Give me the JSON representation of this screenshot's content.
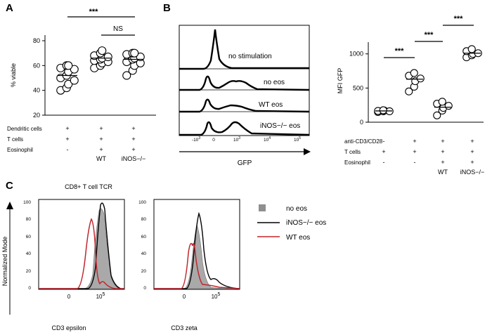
{
  "panel_labels": {
    "a": "A",
    "b": "B",
    "c": "C"
  },
  "panel_a": {
    "ylabel": "% viable",
    "significance": [
      "***",
      "NS"
    ],
    "row_labels": [
      "Dendritic cells",
      "T cells",
      "Eosinophil"
    ],
    "row_marks": [
      [
        "+",
        "+",
        "+"
      ],
      [
        "+",
        "+",
        "+"
      ],
      [
        "-",
        "+",
        "+"
      ]
    ],
    "group_names": [
      "",
      "WT",
      "iNOS−/−"
    ]
  },
  "panel_b_hist": {
    "xlabel": "GFP",
    "track_labels": [
      "no stimulation",
      "no eos",
      "WT eos",
      "iNOS−/− eos"
    ]
  },
  "panel_b_scatter": {
    "ylabel": "MFI GFP",
    "significance": [
      "***",
      "***",
      "***"
    ],
    "row_labels": [
      "anti-CD3/CD28",
      "T cells",
      "Eosinophil"
    ],
    "row_marks": [
      [
        "-",
        "+",
        "+",
        "+"
      ],
      [
        "+",
        "+",
        "+",
        "+"
      ],
      [
        "-",
        "-",
        "+",
        "+"
      ]
    ],
    "group_names": [
      "",
      "",
      "WT",
      "iNOS−/−"
    ]
  },
  "panel_c": {
    "title": "CD8+ T cell TCR",
    "ylabel": "Normalized Mode",
    "plot_xlabels": [
      "CD3 epsilon",
      "CD3 zeta"
    ],
    "y_ticks": [
      "100",
      "80",
      "60",
      "40",
      "20",
      "0"
    ],
    "x_ticks": [
      "0",
      "5"
    ],
    "legend": [
      {
        "label": "no eos",
        "color": "#8f8f8f"
      },
      {
        "label": "iNOS−/− eos",
        "color": "#000000"
      },
      {
        "label": "WT eos",
        "color": "#c0262d"
      }
    ]
  },
  "chart_data": [
    {
      "type": "scatter",
      "ylabel": "% viable",
      "ylim": [
        20,
        80
      ],
      "yticks": [
        20,
        40,
        60,
        80
      ],
      "categories": [
        "DC + T cells",
        "DC + T cells + WT eosinophil",
        "DC + T cells + iNOS−/− eosinophil"
      ],
      "series": [
        {
          "values": [
            [
              40,
              42,
              45,
              48,
              50,
              52,
              55,
              57,
              58,
              60,
              60
            ]
          ],
          "mean": 52
        },
        {
          "values": [
            [
              58,
              60,
              62,
              63,
              64,
              65,
              66,
              67,
              68,
              70,
              72
            ]
          ],
          "mean": 66
        },
        {
          "values": [
            [
              52,
              56,
              60,
              62,
              63,
              65,
              66,
              67,
              69,
              70,
              70
            ]
          ],
          "mean": 65
        }
      ],
      "significance": [
        {
          "from": 0,
          "to": 1,
          "label": "***"
        },
        {
          "from": 1,
          "to": 2,
          "label": "NS"
        }
      ]
    },
    {
      "type": "line",
      "xlabel": "GFP",
      "xticks": [
        "-10^3",
        "0",
        "10^3",
        "10^4",
        "10^5"
      ],
      "series": [
        "no stimulation",
        "no eos",
        "WT eos",
        "iNOS−/− eos"
      ]
    },
    {
      "type": "scatter",
      "ylabel": "MFI GFP",
      "ylim": [
        0,
        1100
      ],
      "yticks": [
        0,
        500,
        1000
      ],
      "categories": [
        "T cells",
        "anti-CD3/CD28 + T cells",
        "anti-CD3/CD28 + T cells + WT eosinophil",
        "anti-CD3/CD28 + T cells + iNOS−/− eosinophil"
      ],
      "series": [
        {
          "values": [
            [
              150,
              160,
              170,
              160,
              165,
              175
            ]
          ],
          "mean": 165
        },
        {
          "values": [
            [
              450,
              520,
              600,
              640,
              680,
              720
            ]
          ],
          "mean": 630
        },
        {
          "values": [
            [
              100,
              170,
              210,
              240,
              270,
              300
            ]
          ],
          "mean": 220
        },
        {
          "values": [
            [
              950,
              980,
              1000,
              1010,
              1040,
              1070
            ]
          ],
          "mean": 1010
        }
      ],
      "significance": [
        {
          "from": 0,
          "to": 1,
          "label": "***"
        },
        {
          "from": 1,
          "to": 2,
          "label": "***"
        },
        {
          "from": 2,
          "to": 3,
          "label": "***"
        }
      ]
    },
    {
      "type": "line",
      "xlabel": "CD3 epsilon",
      "ylabel": "Normalized Mode",
      "ylim": [
        0,
        100
      ],
      "series": [
        "no eos",
        "iNOS−/− eos",
        "WT eos"
      ]
    },
    {
      "type": "line",
      "xlabel": "CD3 zeta",
      "ylabel": "Normalized Mode",
      "ylim": [
        0,
        100
      ],
      "series": [
        "no eos",
        "iNOS−/− eos",
        "WT eos"
      ]
    }
  ]
}
